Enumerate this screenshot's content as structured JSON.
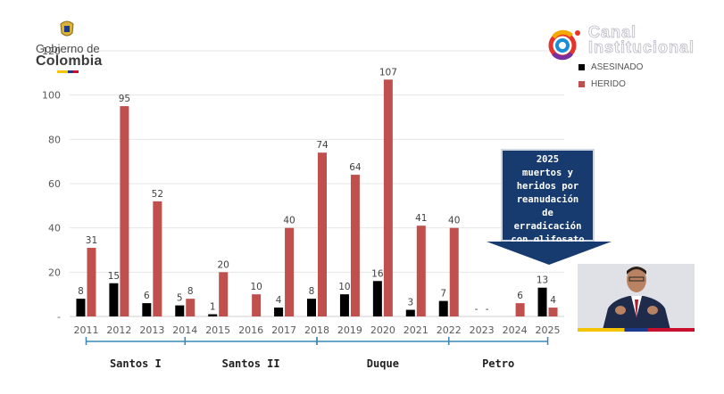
{
  "branding": {
    "gov_small": "Gobierno de",
    "gov_big": "Colombia",
    "channel_line1": "Canal",
    "channel_line2": "Institucional"
  },
  "callout": {
    "lines": [
      "2025",
      "muertos y",
      "heridos por",
      "reanudación",
      "de",
      "erradicación",
      "con glifosato"
    ]
  },
  "colors": {
    "asesinado": "#000000",
    "herido": "#c0504d",
    "callout_bg": "#173b6f"
  },
  "chart_data": {
    "type": "bar",
    "title": "",
    "xlabel": "",
    "ylabel": "",
    "ylim": [
      0,
      120
    ],
    "yticks": [
      "120",
      "100",
      "80",
      "60",
      "40",
      "20",
      "-"
    ],
    "ytick_values": [
      120,
      100,
      80,
      60,
      40,
      20,
      0
    ],
    "categories": [
      "2011",
      "2012",
      "2013",
      "2014",
      "2015",
      "2016",
      "2017",
      "2018",
      "2019",
      "2020",
      "2021",
      "2022",
      "2023",
      "2024",
      "2025"
    ],
    "series": [
      {
        "name": "ASESINADO",
        "values": [
          8,
          15,
          6,
          5,
          1,
          0,
          4,
          8,
          10,
          16,
          3,
          7,
          0,
          0,
          13
        ],
        "labels": [
          "8",
          "15",
          "6",
          "5",
          "1",
          "",
          "4",
          "8",
          "10",
          "16",
          "3",
          "7",
          "-",
          "",
          "13"
        ]
      },
      {
        "name": "HERIDO",
        "values": [
          31,
          95,
          52,
          8,
          20,
          10,
          40,
          74,
          64,
          107,
          41,
          40,
          0,
          6,
          4
        ],
        "labels": [
          "31",
          "95",
          "52",
          "8",
          "20",
          "10",
          "40",
          "74",
          "64",
          "107",
          "41",
          "40",
          "-",
          "6",
          "4"
        ]
      }
    ],
    "groups": [
      {
        "label": "Santos I",
        "from": 0,
        "to": 3
      },
      {
        "label": "Santos II",
        "from": 3,
        "to": 7
      },
      {
        "label": "Duque",
        "from": 7,
        "to": 11
      },
      {
        "label": "Petro",
        "from": 11,
        "to": 14
      }
    ],
    "legend_position": "top-right"
  }
}
